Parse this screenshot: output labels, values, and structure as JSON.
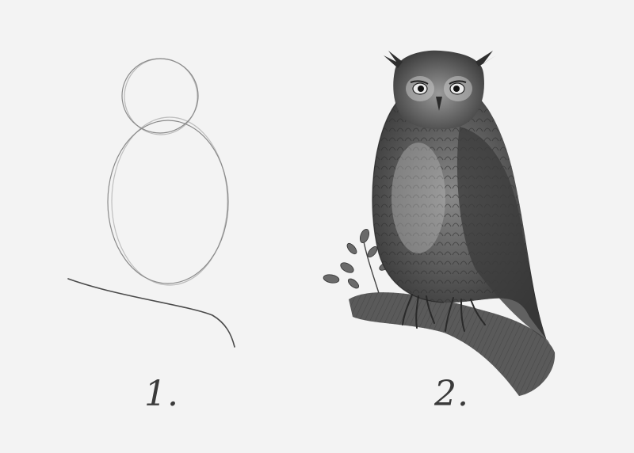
{
  "steps": [
    {
      "label": "1."
    },
    {
      "label": "2."
    }
  ],
  "colors": {
    "paper": "#f3f3f3",
    "graphite_light": "#8c8c8c",
    "graphite_dark": "#2c2c2c"
  },
  "icons": {
    "step1": "owl-construction-sketch",
    "step2": "owl-shaded-drawing"
  }
}
